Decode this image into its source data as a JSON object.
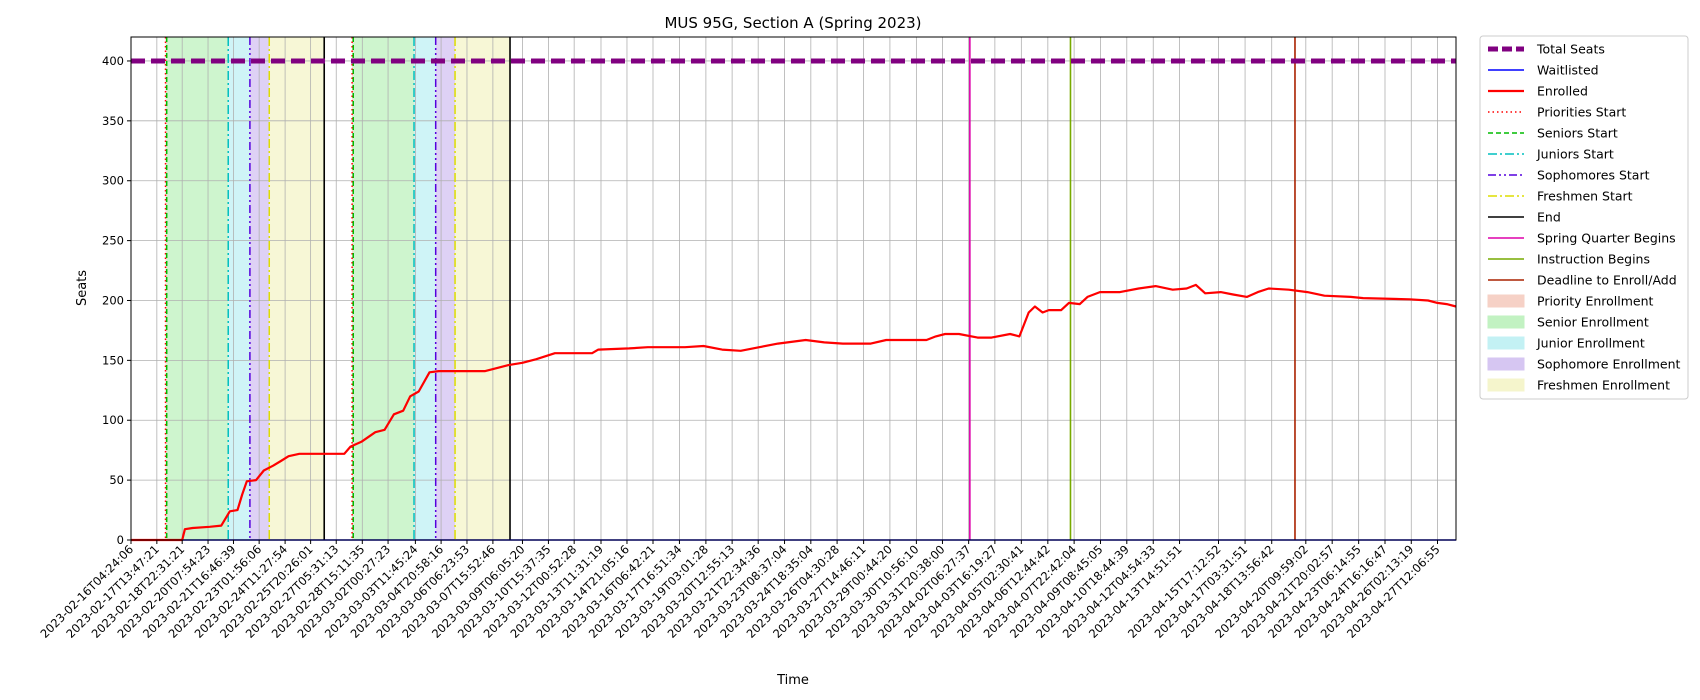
{
  "chart_data": {
    "type": "line",
    "title": "MUS 95G, Section A (Spring 2023)",
    "xlabel": "Time",
    "ylabel": "Seats",
    "x_range": [
      "2023-02-16T04:24:06",
      "2023-04-28T12:00:00"
    ],
    "ylim": [
      0,
      420
    ],
    "y_ticks": [
      0,
      50,
      100,
      150,
      200,
      250,
      300,
      350,
      400
    ],
    "grid": true,
    "legend_position": "outside-right",
    "x_tick_labels": [
      "2023-02-16T04:24:06",
      "2023-02-17T13:47:21",
      "2023-02-18T22:31:21",
      "2023-02-20T07:54:23",
      "2023-02-21T16:46:39",
      "2023-02-23T01:56:06",
      "2023-02-24T11:27:54",
      "2023-02-25T20:26:01",
      "2023-02-27T05:31:13",
      "2023-02-28T15:11:35",
      "2023-03-02T00:27:23",
      "2023-03-03T11:45:24",
      "2023-03-04T20:58:16",
      "2023-03-06T06:23:53",
      "2023-03-07T15:52:46",
      "2023-03-09T06:05:20",
      "2023-03-10T15:37:35",
      "2023-03-12T00:52:28",
      "2023-03-13T11:31:19",
      "2023-03-14T21:05:16",
      "2023-03-16T06:42:21",
      "2023-03-17T16:51:34",
      "2023-03-19T03:01:28",
      "2023-03-20T12:55:13",
      "2023-03-21T22:34:36",
      "2023-03-23T08:37:04",
      "2023-03-24T18:35:04",
      "2023-03-26T04:30:28",
      "2023-03-27T14:46:11",
      "2023-03-29T00:44:20",
      "2023-03-30T10:56:10",
      "2023-03-31T20:38:00",
      "2023-04-02T06:27:37",
      "2023-04-03T16:19:27",
      "2023-04-05T02:30:41",
      "2023-04-06T12:44:42",
      "2023-04-07T22:42:04",
      "2023-04-09T08:45:05",
      "2023-04-10T18:44:39",
      "2023-04-12T04:54:33",
      "2023-04-13T14:51:51",
      "2023-04-15T17:12:52",
      "2023-04-17T03:31:51",
      "2023-04-18T13:56:42",
      "2023-04-20T09:59:02",
      "2023-04-21T20:02:57",
      "2023-04-23T06:14:55",
      "2023-04-24T16:16:47",
      "2023-04-26T02:13:19",
      "2023-04-27T12:06:55"
    ],
    "series": [
      {
        "name": "Total Seats",
        "color": "#800080",
        "style": "dashed-thick",
        "points": [
          [
            "2023-02-16T04:24:06",
            400
          ],
          [
            "2023-04-28T12:00:00",
            400
          ]
        ]
      },
      {
        "name": "Waitlisted",
        "color": "#0000ff",
        "style": "solid-thin",
        "points": [
          [
            "2023-02-16T04:24:06",
            0
          ],
          [
            "2023-04-28T12:00:00",
            0
          ]
        ]
      },
      {
        "name": "Enrolled",
        "color": "#ff0000",
        "style": "solid-thick",
        "points": [
          [
            "2023-02-16T04:24:06",
            0
          ],
          [
            "2023-02-18T22:30:00",
            0
          ],
          [
            "2023-02-19T02:00:00",
            9
          ],
          [
            "2023-02-19T12:00:00",
            10
          ],
          [
            "2023-02-20T10:00:00",
            11
          ],
          [
            "2023-02-21T01:00:00",
            12
          ],
          [
            "2023-02-21T12:00:00",
            24
          ],
          [
            "2023-02-21T22:00:00",
            25
          ],
          [
            "2023-02-22T04:00:00",
            38
          ],
          [
            "2023-02-22T10:00:00",
            49
          ],
          [
            "2023-02-22T22:00:00",
            50
          ],
          [
            "2023-02-23T08:00:00",
            58
          ],
          [
            "2023-02-23T20:00:00",
            62
          ],
          [
            "2023-02-24T06:00:00",
            66
          ],
          [
            "2023-02-24T16:00:00",
            70
          ],
          [
            "2023-02-25T06:00:00",
            72
          ],
          [
            "2023-02-27T16:00:00",
            72
          ],
          [
            "2023-02-28T00:00:00",
            78
          ],
          [
            "2023-02-28T14:00:00",
            82
          ],
          [
            "2023-03-01T08:00:00",
            90
          ],
          [
            "2023-03-01T20:00:00",
            92
          ],
          [
            "2023-03-02T08:00:00",
            105
          ],
          [
            "2023-03-02T20:00:00",
            108
          ],
          [
            "2023-03-03T05:00:00",
            120
          ],
          [
            "2023-03-03T16:00:00",
            124
          ],
          [
            "2023-03-04T06:00:00",
            140
          ],
          [
            "2023-03-04T18:00:00",
            141
          ],
          [
            "2023-03-06T06:00:00",
            141
          ],
          [
            "2023-03-07T06:00:00",
            141
          ],
          [
            "2023-03-07T18:00:00",
            143
          ],
          [
            "2023-03-08T12:00:00",
            146
          ],
          [
            "2023-03-09T06:00:00",
            148
          ],
          [
            "2023-03-10T00:00:00",
            151
          ],
          [
            "2023-03-11T00:00:00",
            156
          ],
          [
            "2023-03-13T00:00:00",
            156
          ],
          [
            "2023-03-13T08:00:00",
            159
          ],
          [
            "2023-03-15T00:00:00",
            160
          ],
          [
            "2023-03-16T00:00:00",
            161
          ],
          [
            "2023-03-18T00:00:00",
            161
          ],
          [
            "2023-03-19T00:00:00",
            162
          ],
          [
            "2023-03-20T00:00:00",
            159
          ],
          [
            "2023-03-21T00:00:00",
            158
          ],
          [
            "2023-03-22T00:00:00",
            161
          ],
          [
            "2023-03-23T00:00:00",
            164
          ],
          [
            "2023-03-24T12:00:00",
            167
          ],
          [
            "2023-03-25T12:00:00",
            165
          ],
          [
            "2023-03-26T12:00:00",
            164
          ],
          [
            "2023-03-28T00:00:00",
            164
          ],
          [
            "2023-03-28T20:00:00",
            167
          ],
          [
            "2023-03-31T00:00:00",
            167
          ],
          [
            "2023-03-31T12:00:00",
            170
          ],
          [
            "2023-04-01T00:00:00",
            172
          ],
          [
            "2023-04-01T18:00:00",
            172
          ],
          [
            "2023-04-02T18:00:00",
            169
          ],
          [
            "2023-04-03T12:00:00",
            169
          ],
          [
            "2023-04-04T12:00:00",
            172
          ],
          [
            "2023-04-05T00:00:00",
            170
          ],
          [
            "2023-04-05T12:00:00",
            190
          ],
          [
            "2023-04-05T20:00:00",
            195
          ],
          [
            "2023-04-06T06:00:00",
            190
          ],
          [
            "2023-04-06T14:00:00",
            192
          ],
          [
            "2023-04-07T06:00:00",
            192
          ],
          [
            "2023-04-07T16:00:00",
            198
          ],
          [
            "2023-04-08T06:00:00",
            197
          ],
          [
            "2023-04-08T16:00:00",
            203
          ],
          [
            "2023-04-09T08:00:00",
            207
          ],
          [
            "2023-04-10T10:00:00",
            207
          ],
          [
            "2023-04-11T10:00:00",
            210
          ],
          [
            "2023-04-12T08:00:00",
            212
          ],
          [
            "2023-04-13T06:00:00",
            209
          ],
          [
            "2023-04-14T00:00:00",
            210
          ],
          [
            "2023-04-14T12:00:00",
            213
          ],
          [
            "2023-04-15T00:00:00",
            206
          ],
          [
            "2023-04-15T20:00:00",
            207
          ],
          [
            "2023-04-16T12:00:00",
            205
          ],
          [
            "2023-04-17T06:00:00",
            203
          ],
          [
            "2023-04-17T20:00:00",
            207
          ],
          [
            "2023-04-18T10:00:00",
            210
          ],
          [
            "2023-04-19T12:00:00",
            209
          ],
          [
            "2023-04-20T12:00:00",
            207
          ],
          [
            "2023-04-21T10:00:00",
            204
          ],
          [
            "2023-04-22T20:00:00",
            203
          ],
          [
            "2023-04-23T12:00:00",
            202
          ],
          [
            "2023-04-26T00:00:00",
            201
          ],
          [
            "2023-04-27T00:00:00",
            200
          ],
          [
            "2023-04-27T12:00:00",
            198
          ],
          [
            "2023-04-28T00:00:00",
            197
          ],
          [
            "2023-04-28T12:00:00",
            195
          ]
        ]
      }
    ],
    "vertical_lines": [
      {
        "name": "Priorities Start",
        "color": "#ff0000",
        "style": "dotted",
        "x": [
          "2023-02-18T01:00:00",
          "2023-02-28T02:00:00"
        ]
      },
      {
        "name": "Seniors Start",
        "color": "#00bb00",
        "style": "dashed",
        "x": [
          "2023-02-18T02:30:00",
          "2023-02-28T03:30:00"
        ]
      },
      {
        "name": "Juniors Start",
        "color": "#00bfbf",
        "style": "dashdot",
        "x": [
          "2023-02-21T10:00:00",
          "2023-03-03T10:00:00"
        ]
      },
      {
        "name": "Sophomores Start",
        "color": "#5500dd",
        "style": "dashdotdot",
        "x": [
          "2023-02-22T14:00:00",
          "2023-03-04T14:00:00"
        ]
      },
      {
        "name": "Freshmen Start",
        "color": "#dddd00",
        "style": "dashdot",
        "x": [
          "2023-02-23T15:00:00",
          "2023-03-05T15:00:00"
        ]
      },
      {
        "name": "End",
        "color": "#000000",
        "style": "solid",
        "x": [
          "2023-02-26T14:00:00",
          "2023-03-08T14:00:00"
        ]
      },
      {
        "name": "Spring Quarter Begins",
        "color": "#dd00aa",
        "style": "solid",
        "x": [
          "2023-04-02T08:00:00"
        ]
      },
      {
        "name": "Instruction Begins",
        "color": "#77aa00",
        "style": "solid",
        "x": [
          "2023-04-07T18:00:00"
        ]
      },
      {
        "name": "Deadline to Enroll/Add",
        "color": "#aa2200",
        "style": "solid",
        "x": [
          "2023-04-19T20:00:00"
        ]
      }
    ],
    "spans": [
      {
        "name": "Priority Enrollment",
        "color": "#f5c6b8",
        "ranges": [
          [
            "2023-02-18T01:00:00",
            "2023-02-18T02:30:00"
          ],
          [
            "2023-02-28T02:00:00",
            "2023-02-28T03:30:00"
          ]
        ]
      },
      {
        "name": "Senior Enrollment",
        "color": "#b3efb3",
        "ranges": [
          [
            "2023-02-18T02:30:00",
            "2023-02-21T10:00:00"
          ],
          [
            "2023-02-28T03:30:00",
            "2023-03-03T10:00:00"
          ]
        ]
      },
      {
        "name": "Junior Enrollment",
        "color": "#b5eef2",
        "ranges": [
          [
            "2023-02-21T10:00:00",
            "2023-02-22T14:00:00"
          ],
          [
            "2023-03-03T10:00:00",
            "2023-03-04T14:00:00"
          ]
        ]
      },
      {
        "name": "Sophomore Enrollment",
        "color": "#cdb8f0",
        "ranges": [
          [
            "2023-02-22T14:00:00",
            "2023-02-23T15:00:00"
          ],
          [
            "2023-03-04T14:00:00",
            "2023-03-05T15:00:00"
          ]
        ]
      },
      {
        "name": "Freshmen Enrollment",
        "color": "#f3f3c0",
        "ranges": [
          [
            "2023-02-23T15:00:00",
            "2023-02-26T14:00:00"
          ],
          [
            "2023-03-05T15:00:00",
            "2023-03-08T14:00:00"
          ]
        ]
      }
    ],
    "legend": [
      {
        "label": "Total Seats",
        "kind": "line",
        "color": "#800080",
        "style": "dashed-thick"
      },
      {
        "label": "Waitlisted",
        "kind": "line",
        "color": "#0000ff",
        "style": "solid-thin"
      },
      {
        "label": "Enrolled",
        "kind": "line",
        "color": "#ff0000",
        "style": "solid-thick"
      },
      {
        "label": "Priorities Start",
        "kind": "line",
        "color": "#ff0000",
        "style": "dotted"
      },
      {
        "label": "Seniors Start",
        "kind": "line",
        "color": "#00bb00",
        "style": "dashed"
      },
      {
        "label": "Juniors Start",
        "kind": "line",
        "color": "#00bfbf",
        "style": "dashdot"
      },
      {
        "label": "Sophomores Start",
        "kind": "line",
        "color": "#5500dd",
        "style": "dashdotdot"
      },
      {
        "label": "Freshmen Start",
        "kind": "line",
        "color": "#dddd00",
        "style": "dashdot"
      },
      {
        "label": "End",
        "kind": "line",
        "color": "#000000",
        "style": "solid"
      },
      {
        "label": "Spring Quarter Begins",
        "kind": "line",
        "color": "#dd00aa",
        "style": "solid"
      },
      {
        "label": "Instruction Begins",
        "kind": "line",
        "color": "#77aa00",
        "style": "solid"
      },
      {
        "label": "Deadline to Enroll/Add",
        "kind": "line",
        "color": "#aa2200",
        "style": "solid"
      },
      {
        "label": "Priority Enrollment",
        "kind": "patch",
        "color": "#f5c6b8"
      },
      {
        "label": "Senior Enrollment",
        "kind": "patch",
        "color": "#b3efb3"
      },
      {
        "label": "Junior Enrollment",
        "kind": "patch",
        "color": "#b5eef2"
      },
      {
        "label": "Sophomore Enrollment",
        "kind": "patch",
        "color": "#cdb8f0"
      },
      {
        "label": "Freshmen Enrollment",
        "kind": "patch",
        "color": "#f3f3c0"
      }
    ]
  }
}
